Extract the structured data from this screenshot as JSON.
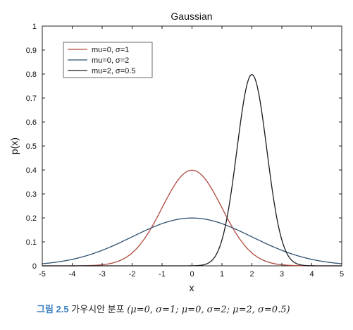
{
  "chart_data": {
    "type": "line",
    "title": "Gaussian",
    "xlabel": "x",
    "ylabel": "p(x)",
    "xlim": [
      -5,
      5
    ],
    "ylim": [
      0,
      1
    ],
    "xticks": [
      "-5",
      "-4",
      "-3",
      "-2",
      "-1",
      "0",
      "1",
      "2",
      "3",
      "4",
      "5"
    ],
    "yticks": [
      "0",
      "0.1",
      "0.2",
      "0.3",
      "0.4",
      "0.5",
      "0.6",
      "0.7",
      "0.8",
      "0.9",
      "1"
    ],
    "legend_position": "top-left",
    "grid": false,
    "series": [
      {
        "name": "mu=0, σ=1",
        "mu": 0,
        "sigma": 1,
        "color": "#b0493c"
      },
      {
        "name": "mu=0, σ=2",
        "mu": 0,
        "sigma": 2,
        "color": "#2f4f6e"
      },
      {
        "name": "mu=2, σ=0.5",
        "mu": 2,
        "sigma": 0.5,
        "color": "#1a1a22"
      }
    ]
  },
  "caption": {
    "label": "그림 2.5",
    "text": "가우시안 분포",
    "params": "(μ=0,  σ=1;  μ=0,  σ=2;  μ=2,  σ=0.5)"
  }
}
